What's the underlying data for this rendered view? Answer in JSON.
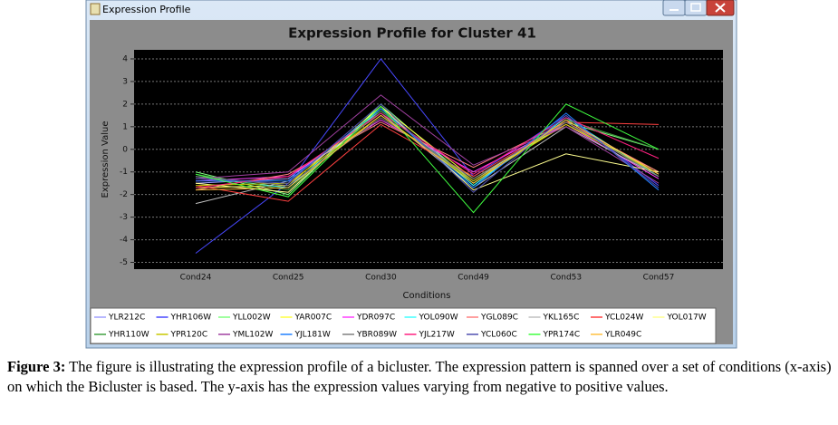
{
  "window": {
    "title": "Expression Profile"
  },
  "chart_data": {
    "type": "line",
    "title": "Expression Profile for Cluster 41",
    "xlabel": "Conditions",
    "ylabel": "Expression Value",
    "categories": [
      "Cond24",
      "Cond25",
      "Cond30",
      "Cond49",
      "Cond53",
      "Cond57"
    ],
    "ylim": [
      -5.3,
      4.4
    ],
    "yticks": [
      -5,
      -4,
      -3,
      -2,
      -1,
      0,
      1,
      2,
      3,
      4
    ],
    "grid": true,
    "series": [
      {
        "name": "YLR212C",
        "color": "#a0a0ff",
        "values": [
          -1.5,
          -1.3,
          1.7,
          -1.4,
          1.3,
          -1.1
        ]
      },
      {
        "name": "YHR106W",
        "color": "#4848ff",
        "values": [
          -4.6,
          -1.5,
          4.0,
          -1.2,
          1.5,
          -1.6
        ]
      },
      {
        "name": "YLL002W",
        "color": "#80ff80",
        "values": [
          -1.0,
          -2.0,
          2.0,
          -1.5,
          1.2,
          0.0
        ]
      },
      {
        "name": "YAR007C",
        "color": "#ffff40",
        "values": [
          -1.7,
          -1.6,
          1.9,
          -1.3,
          1.1,
          -1.0
        ]
      },
      {
        "name": "YDR097C",
        "color": "#ff40ff",
        "values": [
          -1.4,
          -1.2,
          1.3,
          -1.0,
          1.1,
          -1.3
        ]
      },
      {
        "name": "YOL090W",
        "color": "#40ffff",
        "values": [
          -1.2,
          -1.7,
          1.8,
          -1.6,
          1.4,
          -1.2
        ]
      },
      {
        "name": "YGL089C",
        "color": "#ff8080",
        "values": [
          -1.8,
          -1.1,
          1.2,
          -0.8,
          1.2,
          -1.0
        ]
      },
      {
        "name": "YKL165C",
        "color": "#c0c0c0",
        "values": [
          -2.4,
          -1.4,
          1.6,
          -1.7,
          1.0,
          -1.2
        ]
      },
      {
        "name": "YCL024W",
        "color": "#ff4040",
        "values": [
          -1.6,
          -2.3,
          1.1,
          -1.2,
          1.2,
          1.1
        ]
      },
      {
        "name": "YOL017W",
        "color": "#ffff90",
        "values": [
          -1.5,
          -1.9,
          1.9,
          -1.8,
          -0.2,
          -1.0
        ]
      },
      {
        "name": "YHR110W",
        "color": "#40a040",
        "values": [
          -1.1,
          -1.8,
          1.7,
          -1.5,
          1.3,
          0.0
        ]
      },
      {
        "name": "YPR120C",
        "color": "#c8c800",
        "values": [
          -1.6,
          -1.5,
          1.5,
          -1.4,
          1.1,
          -1.1
        ]
      },
      {
        "name": "YML102W",
        "color": "#a040a0",
        "values": [
          -1.3,
          -1.0,
          2.4,
          -0.7,
          1.0,
          -1.5
        ]
      },
      {
        "name": "YJL181W",
        "color": "#2080ff",
        "values": [
          -1.4,
          -1.4,
          1.8,
          -1.7,
          1.6,
          -1.8
        ]
      },
      {
        "name": "YBR089W",
        "color": "#808080",
        "values": [
          -1.2,
          -1.6,
          1.4,
          -1.3,
          1.2,
          -1.2
        ]
      },
      {
        "name": "YJL217W",
        "color": "#ff2080",
        "values": [
          -1.7,
          -1.2,
          1.6,
          -1.1,
          1.4,
          -0.4
        ]
      },
      {
        "name": "YCL060C",
        "color": "#5050b0",
        "values": [
          -1.3,
          -1.5,
          2.0,
          -1.9,
          1.5,
          -1.7
        ]
      },
      {
        "name": "YPR174C",
        "color": "#40ff40",
        "values": [
          -1.1,
          -2.1,
          1.9,
          -2.8,
          2.0,
          0.0
        ]
      },
      {
        "name": "YLR049C",
        "color": "#ffc040",
        "values": [
          -1.8,
          -1.7,
          1.5,
          -1.5,
          1.3,
          -1.1
        ]
      }
    ]
  },
  "caption": {
    "label": "Figure 3:",
    "text": "The figure is illustrating the expression profile of a bicluster. The expression pattern is spanned over a set of conditions (x-axis) on which the Bicluster is based. The y-axis has the expression values varying from negative to positive values."
  }
}
